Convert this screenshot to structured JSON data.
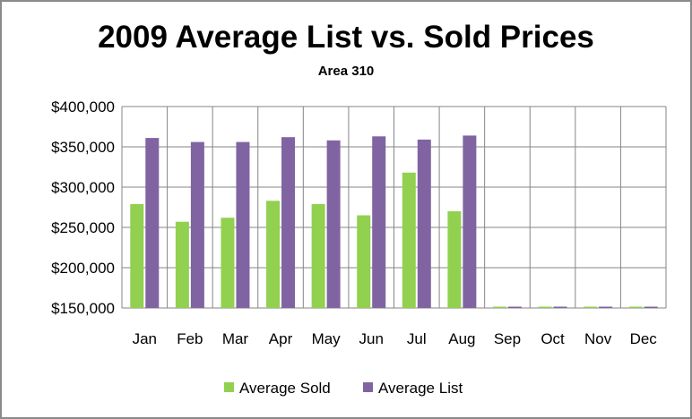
{
  "chart_data": {
    "type": "bar",
    "title": "2009 Average List vs. Sold Prices",
    "subtitle": "Area 310",
    "xlabel": "",
    "ylabel": "",
    "categories": [
      "Jan",
      "Feb",
      "Mar",
      "Apr",
      "May",
      "Jun",
      "Jul",
      "Aug",
      "Sep",
      "Oct",
      "Nov",
      "Dec"
    ],
    "ylim": [
      150000,
      400000
    ],
    "yticks": [
      150000,
      200000,
      250000,
      300000,
      350000,
      400000
    ],
    "ytick_labels": [
      "$150,000",
      "$200,000",
      "$250,000",
      "$300,000",
      "$350,000",
      "$400,000"
    ],
    "grid": true,
    "legend_position": "bottom",
    "series": [
      {
        "name": "Average Sold",
        "color": "#92d050",
        "values": [
          279000,
          257000,
          262000,
          283000,
          279000,
          265000,
          318000,
          270000,
          150000,
          150000,
          150000,
          150000
        ]
      },
      {
        "name": "Average List",
        "color": "#8064a2",
        "values": [
          361000,
          356000,
          356000,
          362000,
          358000,
          363000,
          359000,
          364000,
          150000,
          150000,
          150000,
          150000
        ]
      }
    ]
  }
}
